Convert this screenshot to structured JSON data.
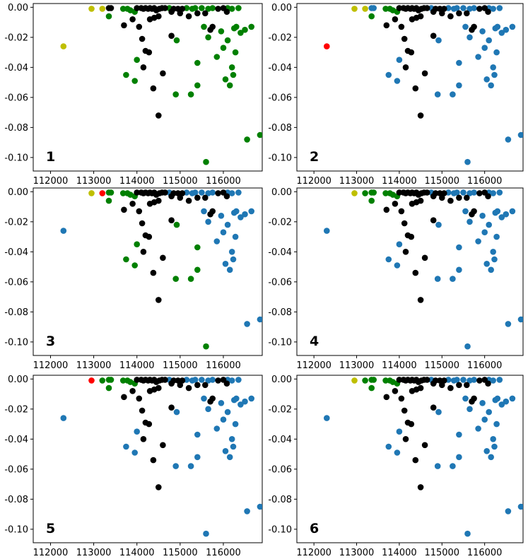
{
  "colors": {
    "blue": "#1f77b4",
    "green": "#008000",
    "black": "#000000",
    "olive": "#bfbf00",
    "red": "#ff0000"
  },
  "chart_data": {
    "type": "scatter",
    "layout": "3x2 grid of subplots",
    "xlim": [
      111600,
      116900
    ],
    "ylim": [
      -0.109,
      0.0025
    ],
    "xticks": [
      112000,
      113000,
      114000,
      115000,
      116000
    ],
    "xtick_labels": [
      "112000",
      "113000",
      "114000",
      "115000",
      "116000"
    ],
    "yticks": [
      0.0,
      -0.02,
      -0.04,
      -0.06,
      -0.08,
      -0.1
    ],
    "ytick_labels": [
      "0.00",
      "-0.02",
      "-0.04",
      "-0.06",
      "-0.08",
      "-0.10"
    ],
    "base_points": [
      [
        112300,
        -0.026
      ],
      [
        112950,
        -0.001
      ],
      [
        113200,
        -0.001
      ],
      [
        113350,
        -0.0005
      ],
      [
        113400,
        -0.0005
      ],
      [
        113350,
        -0.006
      ],
      [
        113680,
        -0.001
      ],
      [
        113780,
        -0.001
      ],
      [
        113850,
        -0.002
      ],
      [
        113950,
        -0.003
      ],
      [
        114000,
        -0.0005
      ],
      [
        114100,
        -0.0005
      ],
      [
        114150,
        -0.001
      ],
      [
        114200,
        -0.0005
      ],
      [
        114260,
        -0.001
      ],
      [
        114300,
        -0.0005
      ],
      [
        114350,
        -0.001
      ],
      [
        114400,
        -0.0005
      ],
      [
        114450,
        -0.002
      ],
      [
        114520,
        -0.001
      ],
      [
        114580,
        -0.0005
      ],
      [
        114650,
        -0.0005
      ],
      [
        114750,
        -0.0005
      ],
      [
        114850,
        -0.001
      ],
      [
        114950,
        -0.001
      ],
      [
        115050,
        -0.001
      ],
      [
        115150,
        -0.0005
      ],
      [
        115280,
        -0.001
      ],
      [
        115350,
        -0.0005
      ],
      [
        115500,
        -0.0005
      ],
      [
        115650,
        -0.001
      ],
      [
        115750,
        -0.0005
      ],
      [
        115880,
        -0.001
      ],
      [
        116000,
        -0.0005
      ],
      [
        116100,
        -0.0005
      ],
      [
        116200,
        -0.001
      ],
      [
        116350,
        -0.0005
      ],
      [
        113700,
        -0.012
      ],
      [
        113900,
        -0.008
      ],
      [
        114050,
        -0.013
      ],
      [
        114300,
        -0.008
      ],
      [
        114400,
        -0.007
      ],
      [
        114500,
        -0.006
      ],
      [
        114800,
        -0.003
      ],
      [
        115000,
        -0.004
      ],
      [
        115200,
        -0.006
      ],
      [
        115400,
        -0.004
      ],
      [
        115700,
        -0.015
      ],
      [
        115750,
        -0.013
      ],
      [
        116080,
        -0.003
      ],
      [
        115580,
        -0.004
      ],
      [
        114120,
        -0.021
      ],
      [
        114800,
        -0.019
      ],
      [
        114200,
        -0.029
      ],
      [
        114280,
        -0.03
      ],
      [
        114150,
        -0.04
      ],
      [
        114600,
        -0.044
      ],
      [
        114380,
        -0.054
      ],
      [
        114500,
        -0.072
      ],
      [
        114920,
        -0.022
      ],
      [
        113750,
        -0.045
      ],
      [
        113950,
        -0.049
      ],
      [
        114000,
        -0.035
      ],
      [
        115250,
        -0.058
      ],
      [
        114900,
        -0.058
      ],
      [
        115400,
        -0.037
      ],
      [
        115400,
        -0.052
      ],
      [
        115600,
        -0.103
      ],
      [
        115550,
        -0.013
      ],
      [
        115650,
        -0.02
      ],
      [
        115950,
        -0.016
      ],
      [
        116050,
        -0.048
      ],
      [
        116150,
        -0.052
      ],
      [
        116200,
        -0.04
      ],
      [
        116230,
        -0.045
      ],
      [
        115850,
        -0.033
      ],
      [
        116000,
        -0.027
      ],
      [
        116100,
        -0.022
      ],
      [
        116250,
        -0.014
      ],
      [
        116400,
        -0.017
      ],
      [
        116500,
        -0.015
      ],
      [
        116300,
        -0.013
      ],
      [
        116650,
        -0.013
      ],
      [
        116550,
        -0.088
      ],
      [
        116850,
        -0.085
      ],
      [
        116280,
        -0.03
      ]
    ],
    "panels": [
      {
        "label": "1",
        "default_color": "green",
        "points_colored": [
          {
            "idx": 0,
            "color": "olive"
          },
          {
            "idx": 1,
            "color": "olive"
          },
          {
            "idx": 2,
            "color": "olive"
          },
          {
            "idx": 3,
            "color": "black"
          },
          {
            "idx": 4,
            "color": "black"
          }
        ],
        "black_indices": [
          10,
          11,
          12,
          13,
          14,
          15,
          16,
          17,
          18,
          19,
          20,
          21,
          23,
          24,
          25,
          37,
          38,
          39,
          40,
          41,
          42,
          43,
          44,
          45,
          46,
          47,
          48,
          49,
          50,
          51,
          52,
          53,
          54,
          55,
          56,
          57,
          58,
          32,
          33
        ]
      },
      {
        "label": "2",
        "default_color": "blue",
        "points_colored": [
          {
            "idx": 0,
            "color": "red"
          },
          {
            "idx": 1,
            "color": "olive"
          },
          {
            "idx": 2,
            "color": "olive"
          }
        ],
        "green_indices": [
          5,
          6,
          7,
          8,
          9
        ],
        "black_indices": [
          10,
          11,
          12,
          13,
          14,
          15,
          16,
          17,
          18,
          19,
          20,
          21,
          23,
          24,
          25,
          37,
          38,
          39,
          40,
          41,
          42,
          43,
          44,
          45,
          46,
          47,
          48,
          49,
          50,
          51,
          52,
          53,
          54,
          55,
          56,
          57,
          58,
          32,
          33
        ]
      },
      {
        "label": "3",
        "default_color": "blue",
        "points_colored": [
          {
            "idx": 1,
            "color": "olive"
          },
          {
            "idx": 2,
            "color": "red"
          }
        ],
        "green_indices": [
          3,
          4,
          5,
          6,
          7,
          8,
          9,
          59,
          60,
          61,
          62,
          63,
          64,
          65,
          66,
          67
        ],
        "black_indices": [
          10,
          11,
          12,
          13,
          14,
          15,
          16,
          17,
          18,
          19,
          20,
          21,
          23,
          24,
          25,
          37,
          38,
          39,
          40,
          41,
          42,
          43,
          44,
          45,
          46,
          47,
          48,
          49,
          50,
          51,
          52,
          53,
          54,
          55,
          56,
          57,
          58,
          32,
          33
        ]
      },
      {
        "label": "4",
        "default_color": "blue",
        "points_colored": [
          {
            "idx": 1,
            "color": "olive"
          }
        ],
        "green_indices": [
          2,
          3,
          4,
          5,
          6,
          7,
          8,
          9
        ],
        "black_indices": [
          10,
          11,
          12,
          13,
          14,
          15,
          16,
          17,
          18,
          19,
          20,
          21,
          23,
          24,
          25,
          37,
          38,
          39,
          40,
          41,
          42,
          43,
          44,
          45,
          46,
          47,
          48,
          49,
          50,
          51,
          52,
          53,
          54,
          55,
          56,
          57,
          58,
          32,
          33
        ]
      },
      {
        "label": "5",
        "default_color": "blue",
        "points_colored": [
          {
            "idx": 1,
            "color": "red"
          }
        ],
        "green_indices": [
          2,
          3,
          4,
          5,
          6,
          7,
          8,
          9
        ],
        "black_indices": [
          10,
          11,
          12,
          13,
          14,
          15,
          16,
          17,
          18,
          19,
          20,
          21,
          23,
          24,
          25,
          37,
          38,
          39,
          40,
          41,
          42,
          43,
          44,
          45,
          46,
          47,
          48,
          49,
          50,
          51,
          52,
          53,
          54,
          55,
          56,
          57,
          58,
          32,
          33
        ]
      },
      {
        "label": "6",
        "default_color": "blue",
        "points_colored": [
          {
            "idx": 1,
            "color": "olive"
          }
        ],
        "green_indices": [
          2,
          3,
          4,
          5,
          6,
          7,
          8,
          9
        ],
        "black_indices": [
          10,
          11,
          12,
          13,
          14,
          15,
          16,
          17,
          18,
          19,
          20,
          21,
          23,
          24,
          25,
          37,
          38,
          39,
          40,
          41,
          42,
          43,
          44,
          45,
          46,
          47,
          48,
          49,
          50,
          51,
          52,
          53,
          54,
          55,
          56,
          57,
          58,
          32,
          33
        ]
      }
    ]
  }
}
